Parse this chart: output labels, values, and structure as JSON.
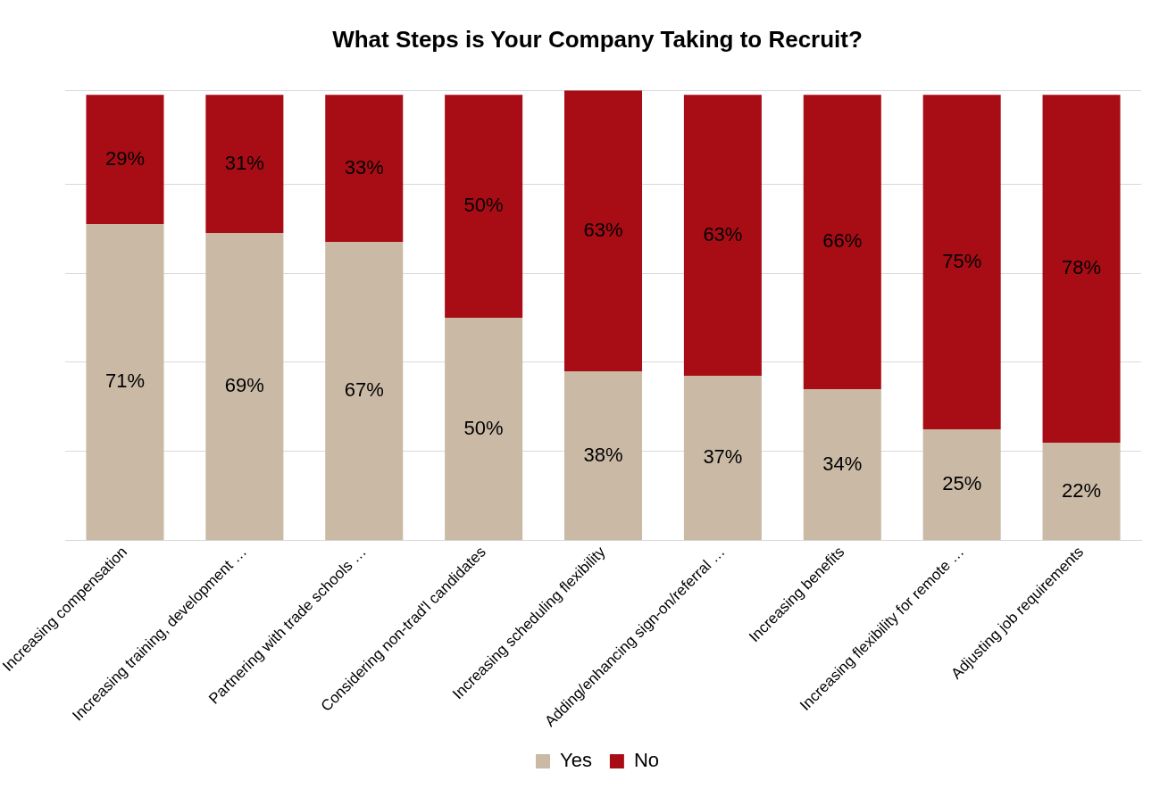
{
  "chart_data": {
    "type": "bar",
    "title": "What Steps is Your Company Taking to Recruit?",
    "categories": [
      "Increasing compensation",
      "Increasing training, development …",
      "Partnering with trade schools …",
      "Considering non-trad'l candidates",
      "Increasing scheduling flexibility",
      "Adding/enhancing sign-on/referral …",
      "Increasing benefits",
      "Increasing flexibility for remote …",
      "Adjusting job requirements"
    ],
    "series": [
      {
        "name": "Yes",
        "color": "#c9b9a5",
        "values": [
          71,
          69,
          67,
          50,
          38,
          37,
          34,
          25,
          22
        ],
        "value_labels": [
          "71%",
          "69%",
          "67%",
          "50%",
          "38%",
          "37%",
          "34%",
          "25%",
          "22%"
        ]
      },
      {
        "name": "No",
        "color": "#a80d16",
        "values": [
          29,
          31,
          33,
          50,
          63,
          63,
          66,
          75,
          78
        ],
        "value_labels": [
          "29%",
          "31%",
          "33%",
          "50%",
          "63%",
          "63%",
          "66%",
          "75%",
          "78%"
        ]
      }
    ],
    "stacked": true,
    "tick_labels": "x",
    "grid": "y",
    "legend": "bottom"
  }
}
